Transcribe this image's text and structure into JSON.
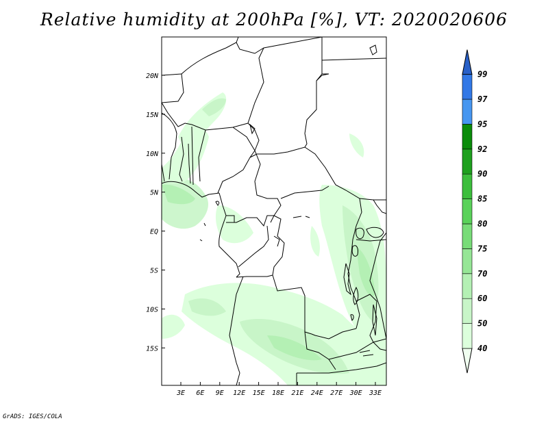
{
  "title": "Relative humidity at 200hPa [%], VT: 2020020606",
  "credit": "GrADS: IGES/COLA",
  "map": {
    "lon_labels": [
      "3E",
      "6E",
      "9E",
      "12E",
      "15E",
      "18E",
      "21E",
      "24E",
      "27E",
      "30E",
      "33E"
    ],
    "lat_labels": [
      "20N",
      "15N",
      "10N",
      "5N",
      "EQ",
      "5S",
      "10S",
      "15S"
    ],
    "colorbar_labels": [
      "40",
      "50",
      "60",
      "70",
      "75",
      "80",
      "85",
      "90",
      "92",
      "95",
      "97",
      "99"
    ],
    "colorbar_colors": [
      "#f0fff0",
      "#dcffdc",
      "#c8f5c8",
      "#b4f0b4",
      "#96e696",
      "#78dc78",
      "#5ad25a",
      "#3cbe3c",
      "#1ea01e",
      "#0a8c0a",
      "#4696f0",
      "#3278e6",
      "#2860c8"
    ]
  }
}
